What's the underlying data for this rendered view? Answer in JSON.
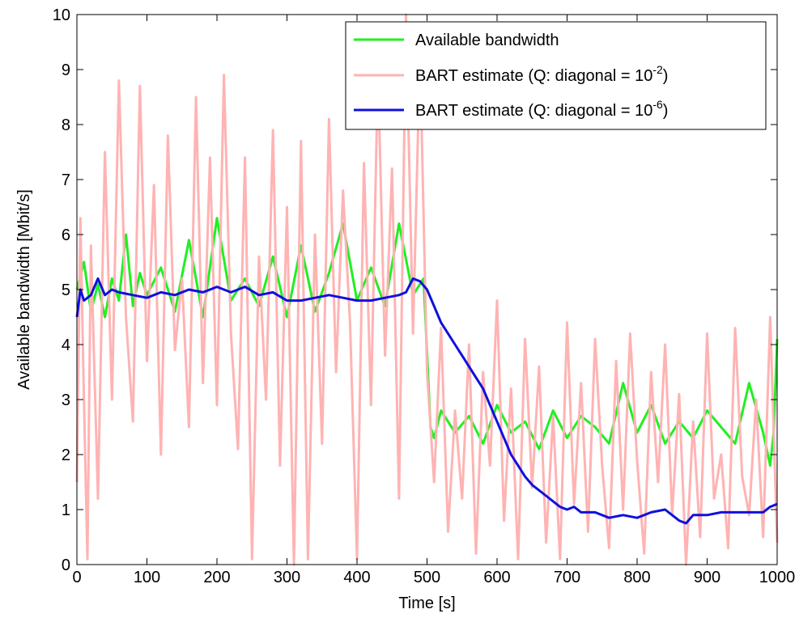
{
  "chart_data": {
    "type": "line",
    "xlabel": "Time [s]",
    "ylabel": "Available bandwidth [Mbit/s]",
    "xlim": [
      0,
      1000
    ],
    "ylim": [
      0,
      10
    ],
    "x_ticks": [
      0,
      100,
      200,
      300,
      400,
      500,
      600,
      700,
      800,
      900,
      1000
    ],
    "y_ticks": [
      0,
      1,
      2,
      3,
      4,
      5,
      6,
      7,
      8,
      9,
      10
    ],
    "grid": false,
    "legend_position": "top-right",
    "series": [
      {
        "name": "Available bandwidth",
        "color": "#22ee22",
        "x": [
          0,
          10,
          20,
          30,
          40,
          50,
          60,
          70,
          80,
          90,
          100,
          120,
          140,
          160,
          180,
          200,
          220,
          240,
          260,
          280,
          300,
          320,
          340,
          360,
          380,
          400,
          420,
          440,
          460,
          480,
          495,
          505,
          510,
          520,
          540,
          560,
          580,
          600,
          620,
          640,
          660,
          680,
          700,
          720,
          740,
          760,
          780,
          800,
          820,
          840,
          860,
          880,
          900,
          920,
          940,
          960,
          980,
          990,
          995,
          1000
        ],
        "y": [
          5.0,
          5.5,
          4.6,
          5.1,
          4.5,
          5.2,
          4.8,
          6.0,
          4.7,
          5.3,
          4.9,
          5.4,
          4.6,
          5.9,
          4.5,
          6.3,
          4.8,
          5.2,
          4.7,
          5.6,
          4.5,
          5.8,
          4.6,
          5.3,
          6.2,
          4.8,
          5.4,
          4.7,
          6.2,
          4.9,
          5.2,
          2.5,
          2.3,
          2.8,
          2.4,
          2.7,
          2.2,
          2.9,
          2.4,
          2.6,
          2.1,
          2.8,
          2.3,
          2.7,
          2.5,
          2.2,
          3.3,
          2.4,
          2.9,
          2.2,
          2.6,
          2.3,
          2.8,
          2.5,
          2.2,
          3.3,
          2.4,
          1.8,
          2.4,
          4.1
        ]
      },
      {
        "name": "BART estimate (Q: diagonal = 10-2)",
        "name_base": "BART estimate (Q: diagonal = 10",
        "name_sup": "-2",
        "name_end": ")",
        "color": "#ffb3b3",
        "x": [
          0,
          5,
          10,
          15,
          20,
          30,
          40,
          50,
          60,
          70,
          80,
          90,
          100,
          110,
          120,
          130,
          140,
          150,
          160,
          170,
          180,
          190,
          200,
          210,
          220,
          230,
          240,
          250,
          260,
          270,
          280,
          290,
          300,
          310,
          320,
          330,
          340,
          350,
          360,
          370,
          380,
          390,
          400,
          410,
          420,
          430,
          440,
          450,
          460,
          470,
          480,
          490,
          500,
          510,
          520,
          530,
          540,
          550,
          560,
          570,
          580,
          590,
          600,
          610,
          620,
          630,
          640,
          650,
          660,
          670,
          680,
          690,
          700,
          710,
          720,
          730,
          740,
          750,
          760,
          770,
          780,
          790,
          800,
          810,
          820,
          830,
          840,
          850,
          860,
          870,
          880,
          890,
          900,
          910,
          920,
          930,
          940,
          950,
          960,
          970,
          980,
          990,
          1000
        ],
        "y": [
          1.5,
          6.3,
          3.0,
          0.1,
          5.8,
          1.2,
          7.5,
          3.0,
          8.8,
          4.5,
          2.6,
          8.7,
          3.7,
          6.9,
          2.0,
          7.8,
          3.9,
          5.2,
          2.5,
          8.5,
          3.3,
          7.4,
          2.9,
          8.9,
          4.2,
          2.1,
          7.4,
          0.1,
          5.6,
          3.0,
          7.9,
          1.8,
          6.5,
          0.0,
          7.7,
          0.1,
          6.0,
          2.2,
          8.1,
          3.5,
          6.8,
          4.4,
          0.1,
          7.3,
          2.9,
          9.0,
          3.8,
          7.2,
          1.2,
          10.0,
          4.2,
          9.3,
          3.5,
          1.5,
          4.3,
          0.6,
          2.8,
          1.2,
          4.0,
          0.2,
          3.5,
          1.8,
          4.8,
          0.8,
          3.2,
          0.1,
          4.1,
          1.4,
          3.6,
          0.4,
          2.7,
          0.1,
          4.4,
          1.1,
          3.3,
          0.6,
          4.1,
          1.8,
          0.3,
          3.7,
          1.0,
          4.2,
          1.9,
          0.2,
          3.5,
          1.5,
          4.0,
          0.9,
          3.1,
          0.0,
          2.6,
          0.5,
          4.2,
          1.2,
          2.0,
          0.3,
          4.3,
          1.6,
          0.9,
          3.0,
          0.5,
          4.5,
          0.4
        ]
      },
      {
        "name": "BART estimate (Q: diagonal = 10-6)",
        "name_base": "BART estimate (Q: diagonal = 10",
        "name_sup": "-6",
        "name_end": ")",
        "color": "#1010dd",
        "x": [
          0,
          5,
          10,
          20,
          30,
          40,
          50,
          60,
          80,
          100,
          120,
          140,
          160,
          180,
          200,
          220,
          240,
          260,
          280,
          300,
          320,
          340,
          360,
          380,
          400,
          420,
          440,
          460,
          470,
          480,
          490,
          500,
          510,
          520,
          530,
          540,
          550,
          560,
          570,
          580,
          590,
          600,
          610,
          620,
          630,
          640,
          650,
          660,
          670,
          680,
          690,
          700,
          710,
          720,
          740,
          760,
          780,
          800,
          820,
          840,
          860,
          870,
          880,
          900,
          920,
          940,
          960,
          980,
          990,
          1000
        ],
        "y": [
          4.5,
          5.0,
          4.8,
          4.9,
          5.2,
          4.9,
          5.0,
          4.95,
          4.9,
          4.85,
          4.95,
          4.9,
          5.0,
          4.95,
          5.05,
          4.95,
          5.05,
          4.9,
          4.95,
          4.8,
          4.8,
          4.85,
          4.9,
          4.85,
          4.8,
          4.8,
          4.85,
          4.9,
          4.95,
          5.2,
          5.15,
          5.0,
          4.7,
          4.4,
          4.2,
          4.0,
          3.8,
          3.6,
          3.4,
          3.2,
          2.9,
          2.6,
          2.3,
          2.0,
          1.8,
          1.6,
          1.45,
          1.35,
          1.25,
          1.15,
          1.05,
          1.0,
          1.05,
          0.95,
          0.95,
          0.85,
          0.9,
          0.85,
          0.95,
          1.0,
          0.8,
          0.75,
          0.9,
          0.9,
          0.95,
          0.95,
          0.95,
          0.95,
          1.05,
          1.1
        ]
      }
    ]
  }
}
